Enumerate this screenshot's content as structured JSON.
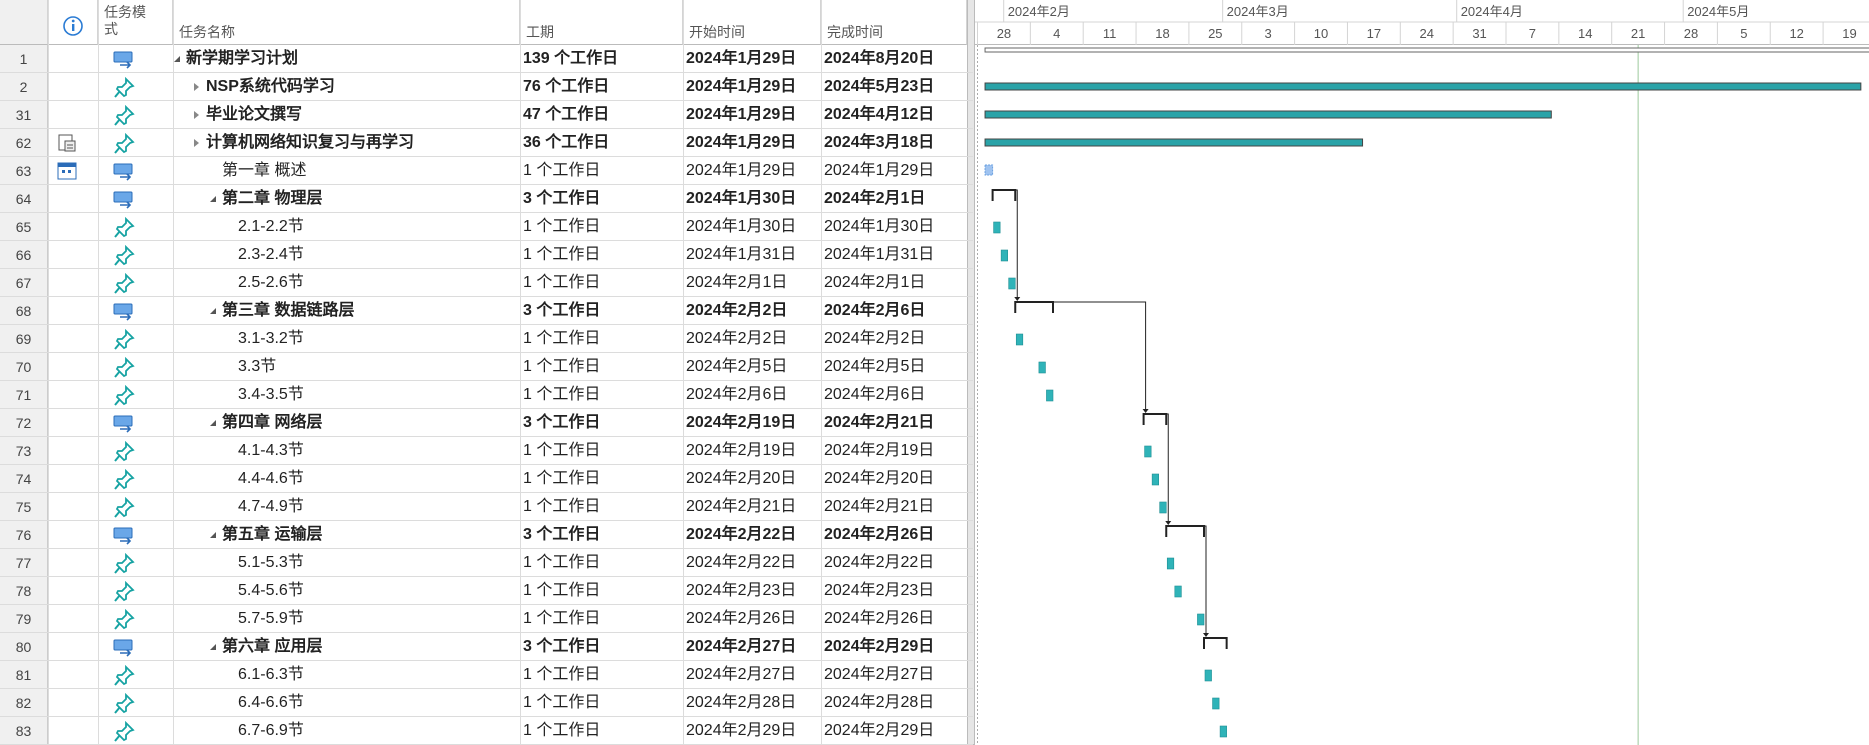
{
  "header": {
    "columns": [
      "任务模式",
      "任务名称",
      "工期",
      "开始时间",
      "完成时间"
    ]
  },
  "timeline": {
    "months": [
      "2024年2月",
      "2024年3月",
      "2024年4月",
      "2024年5月"
    ],
    "days": [
      "28",
      "4",
      "11",
      "18",
      "25",
      "3",
      "10",
      "17",
      "24",
      "31",
      "7",
      "14",
      "21",
      "28",
      "5",
      "12",
      "19"
    ]
  },
  "rows": [
    {
      "id": "1",
      "mode": "auto",
      "level": 0,
      "summary": true,
      "outline": "expanded",
      "name": "新学期学习计划",
      "duration": "139 个工作日",
      "start": "2024年1月29日",
      "finish": "2024年8月20日"
    },
    {
      "id": "2",
      "mode": "manual",
      "level": 1,
      "summary": true,
      "outline": "collapsed",
      "name": "NSP系统代码学习",
      "duration": "76 个工作日",
      "start": "2024年1月29日",
      "finish": "2024年5月23日"
    },
    {
      "id": "31",
      "mode": "manual",
      "level": 1,
      "summary": true,
      "outline": "collapsed",
      "name": "毕业论文撰写",
      "duration": "47 个工作日",
      "start": "2024年1月29日",
      "finish": "2024年4月12日"
    },
    {
      "id": "62",
      "mode": "manual",
      "level": 1,
      "summary": true,
      "outline": "collapsed",
      "indicator": "notes",
      "name": "计算机网络知识复习与再学习",
      "duration": "36 个工作日",
      "start": "2024年1月29日",
      "finish": "2024年3月18日"
    },
    {
      "id": "63",
      "mode": "auto",
      "level": 2,
      "summary": false,
      "indicator": "calendar",
      "name": "第一章 概述",
      "duration": "1 个工作日",
      "start": "2024年1月29日",
      "finish": "2024年1月29日"
    },
    {
      "id": "64",
      "mode": "auto",
      "level": 2,
      "summary": true,
      "outline": "expanded",
      "name": "第二章 物理层",
      "duration": "3 个工作日",
      "start": "2024年1月30日",
      "finish": "2024年2月1日"
    },
    {
      "id": "65",
      "mode": "manual",
      "level": 3,
      "summary": false,
      "name": "2.1-2.2节",
      "duration": "1 个工作日",
      "start": "2024年1月30日",
      "finish": "2024年1月30日"
    },
    {
      "id": "66",
      "mode": "manual",
      "level": 3,
      "summary": false,
      "name": "2.3-2.4节",
      "duration": "1 个工作日",
      "start": "2024年1月31日",
      "finish": "2024年1月31日"
    },
    {
      "id": "67",
      "mode": "manual",
      "level": 3,
      "summary": false,
      "name": "2.5-2.6节",
      "duration": "1 个工作日",
      "start": "2024年2月1日",
      "finish": "2024年2月1日"
    },
    {
      "id": "68",
      "mode": "auto",
      "level": 2,
      "summary": true,
      "outline": "expanded",
      "name": "第三章 数据链路层",
      "duration": "3 个工作日",
      "start": "2024年2月2日",
      "finish": "2024年2月6日"
    },
    {
      "id": "69",
      "mode": "manual",
      "level": 3,
      "summary": false,
      "name": "3.1-3.2节",
      "duration": "1 个工作日",
      "start": "2024年2月2日",
      "finish": "2024年2月2日"
    },
    {
      "id": "70",
      "mode": "manual",
      "level": 3,
      "summary": false,
      "name": "3.3节",
      "duration": "1 个工作日",
      "start": "2024年2月5日",
      "finish": "2024年2月5日"
    },
    {
      "id": "71",
      "mode": "manual",
      "level": 3,
      "summary": false,
      "name": "3.4-3.5节",
      "duration": "1 个工作日",
      "start": "2024年2月6日",
      "finish": "2024年2月6日"
    },
    {
      "id": "72",
      "mode": "auto",
      "level": 2,
      "summary": true,
      "outline": "expanded",
      "name": "第四章 网络层",
      "duration": "3 个工作日",
      "start": "2024年2月19日",
      "finish": "2024年2月21日"
    },
    {
      "id": "73",
      "mode": "manual",
      "level": 3,
      "summary": false,
      "name": "4.1-4.3节",
      "duration": "1 个工作日",
      "start": "2024年2月19日",
      "finish": "2024年2月19日"
    },
    {
      "id": "74",
      "mode": "manual",
      "level": 3,
      "summary": false,
      "name": "4.4-4.6节",
      "duration": "1 个工作日",
      "start": "2024年2月20日",
      "finish": "2024年2月20日"
    },
    {
      "id": "75",
      "mode": "manual",
      "level": 3,
      "summary": false,
      "name": "4.7-4.9节",
      "duration": "1 个工作日",
      "start": "2024年2月21日",
      "finish": "2024年2月21日"
    },
    {
      "id": "76",
      "mode": "auto",
      "level": 2,
      "summary": true,
      "outline": "expanded",
      "name": "第五章 运输层",
      "duration": "3 个工作日",
      "start": "2024年2月22日",
      "finish": "2024年2月26日"
    },
    {
      "id": "77",
      "mode": "manual",
      "level": 3,
      "summary": false,
      "name": "5.1-5.3节",
      "duration": "1 个工作日",
      "start": "2024年2月22日",
      "finish": "2024年2月22日"
    },
    {
      "id": "78",
      "mode": "manual",
      "level": 3,
      "summary": false,
      "name": "5.4-5.6节",
      "duration": "1 个工作日",
      "start": "2024年2月23日",
      "finish": "2024年2月23日"
    },
    {
      "id": "79",
      "mode": "manual",
      "level": 3,
      "summary": false,
      "name": "5.7-5.9节",
      "duration": "1 个工作日",
      "start": "2024年2月26日",
      "finish": "2024年2月26日"
    },
    {
      "id": "80",
      "mode": "auto",
      "level": 2,
      "summary": true,
      "outline": "expanded",
      "name": "第六章 应用层",
      "duration": "3 个工作日",
      "start": "2024年2月27日",
      "finish": "2024年2月29日"
    },
    {
      "id": "81",
      "mode": "manual",
      "level": 3,
      "summary": false,
      "name": "6.1-6.3节",
      "duration": "1 个工作日",
      "start": "2024年2月27日",
      "finish": "2024年2月27日"
    },
    {
      "id": "82",
      "mode": "manual",
      "level": 3,
      "summary": false,
      "name": "6.4-6.6节",
      "duration": "1 个工作日",
      "start": "2024年2月28日",
      "finish": "2024年2月28日"
    },
    {
      "id": "83",
      "mode": "manual",
      "level": 3,
      "summary": false,
      "name": "6.7-6.9节",
      "duration": "1 个工作日",
      "start": "2024年2月29日",
      "finish": "2024年2月29日"
    }
  ]
}
